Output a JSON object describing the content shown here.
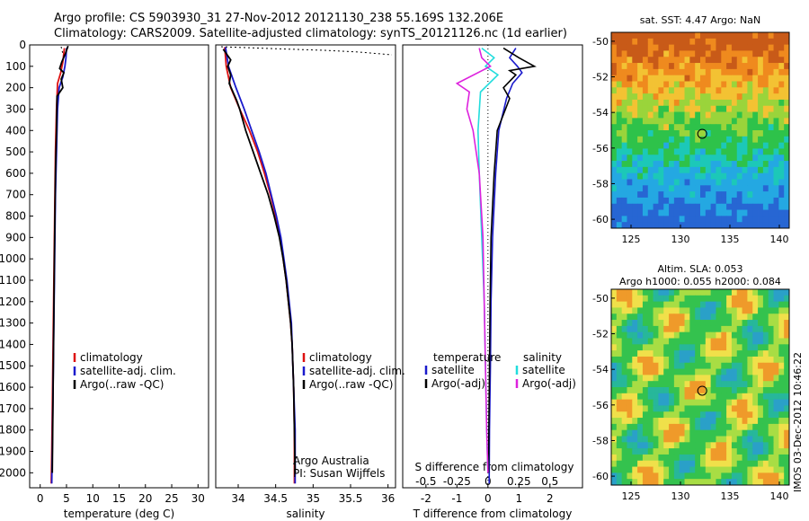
{
  "title_line1": "Argo profile: CS 5903930_31 27-Nov-2012 20121130_238 55.169S 132.206E",
  "title_line2": "Climatology: CARS2009. Satellite-adjusted climatology: synTS_20121126.nc (1d earlier)",
  "watermark": "IMOS 03-Dec-2012 10:46:22",
  "colors": {
    "climatology": "#dd1111",
    "satellite": "#1a1acc",
    "argo": "#000000",
    "satellite_s": "#22dddd",
    "argo_s": "#dd22dd"
  },
  "chart_data": [
    {
      "type": "line",
      "xlabel": "temperature (deg C)",
      "ylabel": "",
      "xlim": [
        -2,
        32
      ],
      "ylim": [
        2070,
        0
      ],
      "x_ticks": [
        "0",
        "5",
        "10",
        "15",
        "20",
        "25",
        "30"
      ],
      "y_ticks": [
        "0",
        "100",
        "200",
        "300",
        "400",
        "500",
        "600",
        "700",
        "800",
        "900",
        "1000",
        "1100",
        "1200",
        "1300",
        "1400",
        "1500",
        "1600",
        "1700",
        "1800",
        "1900",
        "2000"
      ],
      "legend": [
        "climatology",
        "satellite-adj. clim.",
        "Argo(..raw -QC)"
      ],
      "series": [
        {
          "name": "climatology",
          "points": [
            [
              4.6,
              15
            ],
            [
              4.3,
              80
            ],
            [
              3.9,
              130
            ],
            [
              3.3,
              180
            ],
            [
              3.1,
              300
            ],
            [
              2.9,
              500
            ],
            [
              2.8,
              700
            ],
            [
              2.7,
              900
            ],
            [
              2.6,
              1100
            ],
            [
              2.5,
              1300
            ],
            [
              2.4,
              1500
            ],
            [
              2.3,
              1700
            ],
            [
              2.2,
              1900
            ],
            [
              2.1,
              2050
            ]
          ]
        },
        {
          "name": "satellite-adj. clim.",
          "points": [
            [
              5.0,
              15
            ],
            [
              4.9,
              60
            ],
            [
              4.7,
              100
            ],
            [
              4.3,
              150
            ],
            [
              3.6,
              200
            ],
            [
              3.3,
              300
            ],
            [
              3.1,
              500
            ],
            [
              2.9,
              700
            ],
            [
              2.8,
              900
            ],
            [
              2.7,
              1100
            ],
            [
              2.6,
              1300
            ],
            [
              2.5,
              1500
            ],
            [
              2.4,
              1700
            ],
            [
              2.3,
              1900
            ],
            [
              2.2,
              2050
            ]
          ]
        },
        {
          "name": "Argo(..raw -QC)",
          "points": [
            [
              5.3,
              5
            ],
            [
              4.8,
              40
            ],
            [
              4.1,
              80
            ],
            [
              3.7,
              110
            ],
            [
              4.5,
              130
            ],
            [
              4.0,
              160
            ],
            [
              4.3,
              200
            ],
            [
              3.2,
              240
            ],
            [
              3.1,
              400
            ],
            [
              2.9,
              600
            ],
            [
              2.7,
              1000
            ],
            [
              2.5,
              1500
            ],
            [
              2.3,
              2000
            ]
          ]
        }
      ]
    },
    {
      "type": "line",
      "xlabel": "salinity",
      "ylabel": "",
      "xlim": [
        33.7,
        36.1
      ],
      "ylim": [
        2070,
        0
      ],
      "x_ticks": [
        "34",
        "34.5",
        "35",
        "35.5",
        "36"
      ],
      "legend": [
        "climatology",
        "satellite-adj. clim.",
        "Argo(..raw -QC)"
      ],
      "annotation": [
        "Argo Australia",
        "PI: Susan Wijffels"
      ],
      "series": [
        {
          "name": "climatology",
          "points": [
            [
              33.82,
              10
            ],
            [
              33.84,
              100
            ],
            [
              33.9,
              200
            ],
            [
              34.02,
              300
            ],
            [
              34.15,
              400
            ],
            [
              34.26,
              500
            ],
            [
              34.35,
              600
            ],
            [
              34.43,
              700
            ],
            [
              34.5,
              800
            ],
            [
              34.56,
              900
            ],
            [
              34.6,
              1000
            ],
            [
              34.64,
              1100
            ],
            [
              34.67,
              1200
            ],
            [
              34.7,
              1300
            ],
            [
              34.72,
              1400
            ],
            [
              34.73,
              1500
            ],
            [
              34.74,
              1600
            ],
            [
              34.745,
              1700
            ],
            [
              34.75,
              1800
            ],
            [
              34.75,
              1900
            ],
            [
              34.75,
              2050
            ]
          ]
        },
        {
          "name": "satellite-adj. clim.",
          "points": [
            [
              33.83,
              10
            ],
            [
              33.87,
              100
            ],
            [
              33.97,
              200
            ],
            [
              34.08,
              300
            ],
            [
              34.18,
              400
            ],
            [
              34.28,
              500
            ],
            [
              34.37,
              600
            ],
            [
              34.44,
              700
            ],
            [
              34.51,
              800
            ],
            [
              34.57,
              900
            ],
            [
              34.61,
              1000
            ],
            [
              34.65,
              1100
            ],
            [
              34.68,
              1200
            ],
            [
              34.71,
              1300
            ],
            [
              34.72,
              1400
            ],
            [
              34.73,
              1500
            ],
            [
              34.74,
              1600
            ],
            [
              34.75,
              1700
            ],
            [
              34.76,
              1800
            ],
            [
              34.76,
              1900
            ],
            [
              34.76,
              2050
            ]
          ]
        },
        {
          "name": "Argo(..raw -QC)",
          "points": [
            [
              33.8,
              20
            ],
            [
              33.9,
              70
            ],
            [
              33.86,
              100
            ],
            [
              33.9,
              140
            ],
            [
              33.88,
              180
            ],
            [
              33.98,
              260
            ],
            [
              34.02,
              300
            ],
            [
              34.1,
              400
            ],
            [
              34.2,
              500
            ],
            [
              34.3,
              600
            ],
            [
              34.4,
              700
            ],
            [
              34.48,
              800
            ],
            [
              34.55,
              900
            ],
            [
              34.6,
              1000
            ],
            [
              34.64,
              1100
            ],
            [
              34.67,
              1200
            ],
            [
              34.7,
              1300
            ],
            [
              34.72,
              1400
            ],
            [
              34.73,
              1500
            ],
            [
              34.74,
              1600
            ],
            [
              34.745,
              1700
            ],
            [
              34.75,
              1800
            ],
            [
              34.755,
              1900
            ],
            [
              34.76,
              2000
            ]
          ]
        }
      ]
    },
    {
      "type": "line",
      "xlabel": "T difference from climatology",
      "xlabel_top": "S difference from climatology",
      "xlim": [
        -2.75,
        3.05
      ],
      "ylim": [
        2070,
        0
      ],
      "x_ticks": [
        "-2",
        "-1",
        "0",
        "1",
        "2"
      ],
      "x_ticks_top": [
        "-0.5",
        "-0.25",
        "0",
        "0.25",
        "0.5"
      ],
      "legend_temperature": {
        "heading": "temperature",
        "items": [
          "satellite",
          "Argo(-adj)"
        ]
      },
      "legend_salinity": {
        "heading": "salinity",
        "items": [
          "satellite",
          "Argo(-adj)"
        ]
      },
      "series": [
        {
          "name": "temperature satellite",
          "points": [
            [
              0.9,
              15
            ],
            [
              0.7,
              60
            ],
            [
              0.95,
              100
            ],
            [
              1.1,
              130
            ],
            [
              0.8,
              180
            ],
            [
              0.6,
              250
            ],
            [
              0.35,
              400
            ],
            [
              0.25,
              600
            ],
            [
              0.15,
              900
            ],
            [
              0.1,
              1200
            ],
            [
              0.08,
              1500
            ],
            [
              0.05,
              1800
            ],
            [
              0.04,
              2050
            ]
          ]
        },
        {
          "name": "temperature Argo(-adj)",
          "points": [
            [
              0.5,
              15
            ],
            [
              1.0,
              60
            ],
            [
              1.5,
              100
            ],
            [
              0.7,
              120
            ],
            [
              0.9,
              140
            ],
            [
              0.5,
              200
            ],
            [
              0.7,
              250
            ],
            [
              0.3,
              400
            ],
            [
              0.2,
              600
            ],
            [
              0.1,
              900
            ],
            [
              0.07,
              1200
            ],
            [
              0.05,
              1500
            ],
            [
              0.03,
              1800
            ],
            [
              0.02,
              2000
            ]
          ]
        },
        {
          "name": "salinity satellite",
          "points": [
            [
              -0.05,
              15
            ],
            [
              0.05,
              60
            ],
            [
              -0.02,
              100
            ],
            [
              0.08,
              140
            ],
            [
              -0.06,
              220
            ],
            [
              -0.08,
              400
            ],
            [
              -0.07,
              600
            ],
            [
              -0.05,
              900
            ],
            [
              -0.03,
              1200
            ],
            [
              -0.02,
              1500
            ],
            [
              -0.01,
              1800
            ],
            [
              0.0,
              2000
            ]
          ]
        },
        {
          "name": "salinity Argo(-adj)",
          "points": [
            [
              -0.07,
              15
            ],
            [
              -0.05,
              60
            ],
            [
              0.02,
              100
            ],
            [
              -0.25,
              180
            ],
            [
              -0.15,
              220
            ],
            [
              -0.17,
              300
            ],
            [
              -0.12,
              400
            ],
            [
              -0.07,
              600
            ],
            [
              -0.04,
              900
            ],
            [
              -0.03,
              1200
            ],
            [
              -0.02,
              1500
            ],
            [
              -0.01,
              1800
            ],
            [
              0.0,
              2000
            ]
          ]
        }
      ]
    },
    {
      "type": "heatmap",
      "title": "sat. SST: 4.47  Argo: NaN",
      "xlim": [
        123,
        141
      ],
      "ylim": [
        -60.5,
        -49.5
      ],
      "x_ticks": [
        "125",
        "130",
        "135",
        "140"
      ],
      "y_ticks": [
        "-50",
        "-52",
        "-54",
        "-56",
        "-58",
        "-60"
      ],
      "marker": [
        132.2,
        -55.2
      ]
    },
    {
      "type": "heatmap",
      "title": [
        "Altim. SLA: 0.053",
        "Argo h1000: 0.055 h2000: 0.084"
      ],
      "xlim": [
        123,
        141
      ],
      "ylim": [
        -60.5,
        -49.5
      ],
      "x_ticks": [
        "125",
        "130",
        "135",
        "140"
      ],
      "y_ticks": [
        "-50",
        "-52",
        "-54",
        "-56",
        "-58",
        "-60"
      ],
      "marker": [
        132.2,
        -55.2
      ]
    }
  ]
}
